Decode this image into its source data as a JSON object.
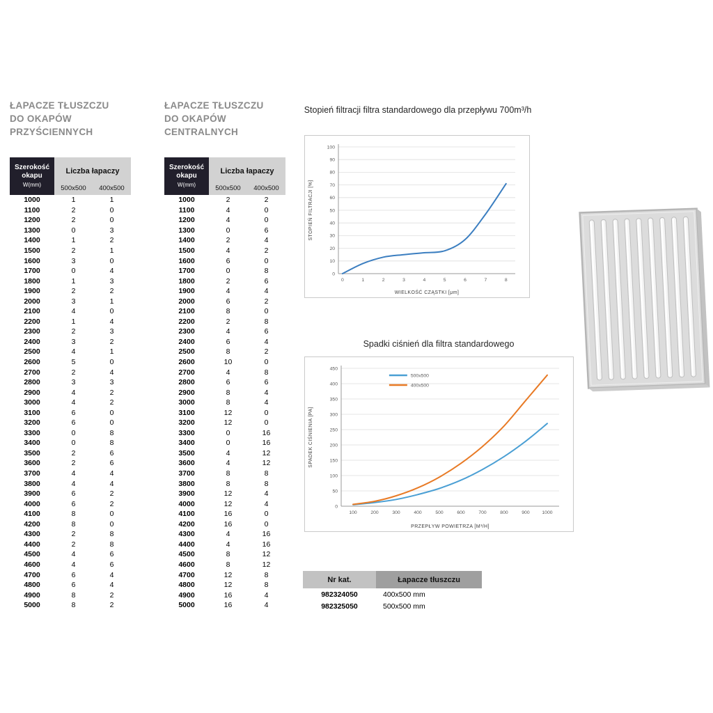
{
  "colors": {
    "table_header_dark": "#211f2b",
    "table_header_gray": "#d2d2d2",
    "catalog_header_light": "#c2c2c2",
    "catalog_header_dark": "#9f9f9f",
    "series_500x500": "#4a9fd4",
    "series_400x500": "#e87a25",
    "filtration_line": "#3b7ec0"
  },
  "tables": {
    "wall": {
      "title_lines": [
        "ŁAPACZE TŁUSZCZU",
        "DO OKAPÓW",
        "PRZYŚCIENNYCH"
      ],
      "header": {
        "width_label_1": "Szerokość",
        "width_label_2": "okapu",
        "width_label_3": "W(mm)",
        "count_label": "Liczba łapaczy",
        "sub_cols": [
          "500x500",
          "400x500"
        ]
      },
      "rows": [
        [
          1000,
          1,
          1
        ],
        [
          1100,
          2,
          0
        ],
        [
          1200,
          2,
          0
        ],
        [
          1300,
          0,
          3
        ],
        [
          1400,
          1,
          2
        ],
        [
          1500,
          2,
          1
        ],
        [
          1600,
          3,
          0
        ],
        [
          1700,
          0,
          4
        ],
        [
          1800,
          1,
          3
        ],
        [
          1900,
          2,
          2
        ],
        [
          2000,
          3,
          1
        ],
        [
          2100,
          4,
          0
        ],
        [
          2200,
          1,
          4
        ],
        [
          2300,
          2,
          3
        ],
        [
          2400,
          3,
          2
        ],
        [
          2500,
          4,
          1
        ],
        [
          2600,
          5,
          0
        ],
        [
          2700,
          2,
          4
        ],
        [
          2800,
          3,
          3
        ],
        [
          2900,
          4,
          2
        ],
        [
          3000,
          4,
          2
        ],
        [
          3100,
          6,
          0
        ],
        [
          3200,
          6,
          0
        ],
        [
          3300,
          0,
          8
        ],
        [
          3400,
          0,
          8
        ],
        [
          3500,
          2,
          6
        ],
        [
          3600,
          2,
          6
        ],
        [
          3700,
          4,
          4
        ],
        [
          3800,
          4,
          4
        ],
        [
          3900,
          6,
          2
        ],
        [
          4000,
          6,
          2
        ],
        [
          4100,
          8,
          0
        ],
        [
          4200,
          8,
          0
        ],
        [
          4300,
          2,
          8
        ],
        [
          4400,
          2,
          8
        ],
        [
          4500,
          4,
          6
        ],
        [
          4600,
          4,
          6
        ],
        [
          4700,
          6,
          4
        ],
        [
          4800,
          6,
          4
        ],
        [
          4900,
          8,
          2
        ],
        [
          5000,
          8,
          2
        ]
      ]
    },
    "central": {
      "title_lines": [
        "ŁAPACZE TŁUSZCZU",
        "DO OKAPÓW",
        "CENTRALNYCH"
      ],
      "header": {
        "width_label_1": "Szerokość",
        "width_label_2": "okapu",
        "width_label_3": "W(mm)",
        "count_label": "Liczba łapaczy",
        "sub_cols": [
          "500x500",
          "400x500"
        ]
      },
      "rows": [
        [
          1000,
          2,
          2
        ],
        [
          1100,
          4,
          0
        ],
        [
          1200,
          4,
          0
        ],
        [
          1300,
          0,
          6
        ],
        [
          1400,
          2,
          4
        ],
        [
          1500,
          4,
          2
        ],
        [
          1600,
          6,
          0
        ],
        [
          1700,
          0,
          8
        ],
        [
          1800,
          2,
          6
        ],
        [
          1900,
          4,
          4
        ],
        [
          2000,
          6,
          2
        ],
        [
          2100,
          8,
          0
        ],
        [
          2200,
          2,
          8
        ],
        [
          2300,
          4,
          6
        ],
        [
          2400,
          6,
          4
        ],
        [
          2500,
          8,
          2
        ],
        [
          2600,
          10,
          0
        ],
        [
          2700,
          4,
          8
        ],
        [
          2800,
          6,
          6
        ],
        [
          2900,
          8,
          4
        ],
        [
          3000,
          8,
          4
        ],
        [
          3100,
          12,
          0
        ],
        [
          3200,
          12,
          0
        ],
        [
          3300,
          0,
          16
        ],
        [
          3400,
          0,
          16
        ],
        [
          3500,
          4,
          12
        ],
        [
          3600,
          4,
          12
        ],
        [
          3700,
          8,
          8
        ],
        [
          3800,
          8,
          8
        ],
        [
          3900,
          12,
          4
        ],
        [
          4000,
          12,
          4
        ],
        [
          4100,
          16,
          0
        ],
        [
          4200,
          16,
          0
        ],
        [
          4300,
          4,
          16
        ],
        [
          4400,
          4,
          16
        ],
        [
          4500,
          8,
          12
        ],
        [
          4600,
          8,
          12
        ],
        [
          4700,
          12,
          8
        ],
        [
          4800,
          12,
          8
        ],
        [
          4900,
          16,
          4
        ],
        [
          5000,
          16,
          4
        ]
      ]
    }
  },
  "chart_data": [
    {
      "type": "line",
      "title": "Stopień filtracji filtra standardowego dla przepływu 700m³/h",
      "xlabel": "WIELKOŚĆ CZĄSTKI [μm]",
      "ylabel": "STOPIEŃ FILTRACJI [%]",
      "xlim": [
        0,
        8
      ],
      "ylim": [
        0,
        100
      ],
      "xticks": [
        0,
        1,
        2,
        3,
        4,
        5,
        6,
        7,
        8
      ],
      "yticks": [
        0,
        10,
        20,
        30,
        40,
        50,
        60,
        70,
        80,
        90,
        100
      ],
      "grid": "horizontal",
      "legend": false,
      "series": [
        {
          "name": "filtr standardowy",
          "color": "#3b7ec0",
          "x": [
            0,
            1,
            2,
            3,
            4,
            5,
            6,
            7,
            8
          ],
          "y": [
            0,
            8,
            13,
            15,
            16.5,
            18,
            27,
            47,
            71
          ]
        }
      ]
    },
    {
      "type": "line",
      "title": "Spadki ciśnień dla filtra standardowego",
      "xlabel": "PRZEPŁYW POWIETRZA [M³/H]",
      "ylabel": "SPADEK CIŚNIENIA [PA]",
      "xlim": [
        100,
        1000
      ],
      "ylim": [
        0,
        450
      ],
      "xticks": [
        100,
        200,
        300,
        400,
        500,
        600,
        700,
        800,
        900,
        1000
      ],
      "yticks": [
        0,
        50,
        100,
        150,
        200,
        250,
        300,
        350,
        400,
        450
      ],
      "grid": "horizontal",
      "legend": true,
      "series": [
        {
          "name": "500x500",
          "color": "#4a9fd4",
          "x": [
            100,
            200,
            300,
            400,
            500,
            600,
            700,
            800,
            900,
            1000
          ],
          "y": [
            5,
            12,
            22,
            38,
            58,
            85,
            120,
            162,
            212,
            270
          ]
        },
        {
          "name": "400x500",
          "color": "#e87a25",
          "x": [
            100,
            200,
            300,
            400,
            500,
            600,
            700,
            800,
            900,
            1000
          ],
          "y": [
            6,
            16,
            34,
            60,
            95,
            140,
            195,
            262,
            345,
            428
          ]
        }
      ]
    }
  ],
  "catalog_table": {
    "headers": [
      "Nr kat.",
      "Łapacze tłuszczu"
    ],
    "rows": [
      [
        "982324050",
        "400x500 mm"
      ],
      [
        "982325050",
        "500x500 mm"
      ]
    ]
  }
}
